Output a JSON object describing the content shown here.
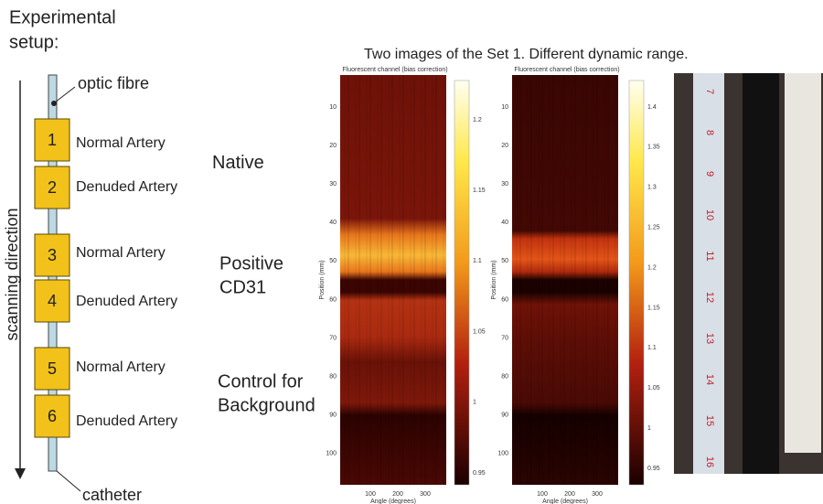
{
  "header": {
    "title_lines": [
      "Experimental",
      "setup:"
    ],
    "caption": "Two images of the Set 1. Different dynamic range."
  },
  "diagram": {
    "axis_label": "scanning direction",
    "top_label": "optic fibre",
    "bottom_label": "catheter",
    "samples": [
      {
        "number": "1",
        "label": "Normal Artery"
      },
      {
        "number": "2",
        "label": "Denuded Artery"
      },
      {
        "number": "3",
        "label": "Normal Artery"
      },
      {
        "number": "4",
        "label": "Denuded Artery"
      },
      {
        "number": "5",
        "label": "Normal Artery"
      },
      {
        "number": "6",
        "label": "Denuded Artery"
      }
    ],
    "groups": [
      [
        "Native"
      ],
      [
        "Positive",
        "CD31"
      ],
      [
        "Control for",
        "Background"
      ]
    ]
  },
  "images": [
    {
      "title": "Fluorescent channel (bias correction)",
      "y_label": "Position (mm)",
      "x_label": "Angle (degrees)",
      "yticks": [
        "10",
        "20",
        "30",
        "40",
        "50",
        "60",
        "70",
        "80",
        "90",
        "100"
      ],
      "xticks": [
        "100",
        "200",
        "300"
      ],
      "colorbar_ticks": [
        "1.2",
        "1.15",
        "1.1",
        "1.05",
        "1",
        "0.95"
      ]
    },
    {
      "title": "Fluorescent channel (bias correction)",
      "y_label": "Position (mm)",
      "x_label": "Angle (degrees)",
      "yticks": [
        "10",
        "20",
        "30",
        "40",
        "50",
        "60",
        "70",
        "80",
        "90",
        "100"
      ],
      "xticks": [
        "100",
        "200",
        "300"
      ],
      "colorbar_ticks": [
        "1.4",
        "1.35",
        "1.3",
        "1.25",
        "1.2",
        "1.15",
        "1.1",
        "1.05",
        "1",
        "0.95"
      ]
    }
  ],
  "photo": {
    "ruler_labels": [
      "7",
      "8",
      "9",
      "10",
      "11",
      "12",
      "13",
      "14",
      "15",
      "16"
    ]
  }
}
